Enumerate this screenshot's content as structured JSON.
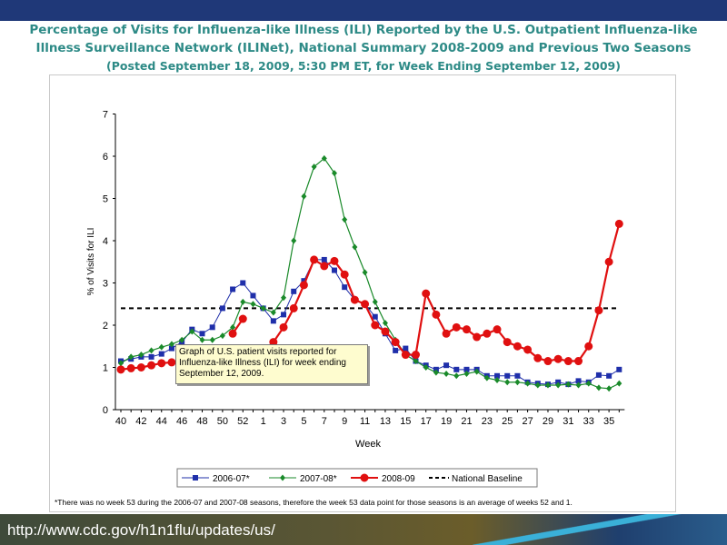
{
  "header": {
    "title_line1": "Percentage of Visits for Influenza-like Illness (ILI) Reported by the U.S. Outpatient Influenza-like",
    "title_line2": "Illness Surveillance Network (ILINet), National Summary 2008-2009 and Previous Two Seasons",
    "title_line3": "(Posted September 18, 2009, 5:30 PM ET, for Week Ending September 12, 2009)"
  },
  "callout": {
    "text": "Graph of U.S. patient visits reported for Influenza-like Illness (ILI) for week ending September 12, 2009."
  },
  "footnote": "*There was no week 53 during the 2006-07 and 2007-08 seasons, therefore the week 53 data point for those seasons is an average of weeks 52 and 1.",
  "url": "http://www.cdc.gov/h1n1flu/updates/us/",
  "colors": {
    "title": "#2d8a86",
    "s2006": "#1f2faa",
    "s2007": "#1a8a2a",
    "s2008": "#e01010",
    "baseline": "#000000"
  },
  "chart_data": {
    "type": "line",
    "title": "",
    "xlabel": "Week",
    "ylabel": "% of Visits for ILI",
    "ylim": [
      0,
      7
    ],
    "yticks": [
      0,
      1,
      2,
      3,
      4,
      5,
      6,
      7
    ],
    "grid": false,
    "legend_position": "bottom",
    "categories": [
      "40",
      "41",
      "42",
      "43",
      "44",
      "45",
      "46",
      "47",
      "48",
      "49",
      "50",
      "51",
      "52",
      "53",
      "1",
      "2",
      "3",
      "4",
      "5",
      "6",
      "7",
      "8",
      "9",
      "10",
      "11",
      "12",
      "13",
      "14",
      "15",
      "16",
      "17",
      "18",
      "19",
      "20",
      "21",
      "22",
      "23",
      "24",
      "25",
      "26",
      "27",
      "28",
      "29",
      "30",
      "31",
      "32",
      "33",
      "34",
      "35",
      "36"
    ],
    "tick_labels": [
      "40",
      "42",
      "44",
      "46",
      "48",
      "50",
      "52",
      "1",
      "3",
      "5",
      "7",
      "9",
      "11",
      "13",
      "15",
      "17",
      "19",
      "21",
      "23",
      "25",
      "27",
      "29",
      "31",
      "33",
      "35"
    ],
    "series": [
      {
        "name": "2006-07*",
        "marker": "square",
        "values": [
          1.15,
          1.2,
          1.25,
          1.25,
          1.32,
          1.45,
          1.6,
          1.9,
          1.8,
          1.95,
          2.4,
          2.85,
          3.0,
          2.7,
          2.4,
          2.1,
          2.25,
          2.8,
          3.05,
          3.55,
          3.55,
          3.3,
          2.9,
          2.6,
          2.5,
          2.2,
          1.8,
          1.4,
          1.45,
          1.15,
          1.05,
          0.95,
          1.05,
          0.95,
          0.95,
          0.95,
          0.8,
          0.8,
          0.8,
          0.8,
          0.65,
          0.62,
          0.6,
          0.65,
          0.6,
          0.68,
          0.65,
          0.82,
          0.8,
          0.95
        ]
      },
      {
        "name": "2007-08*",
        "marker": "diamond",
        "values": [
          1.1,
          1.25,
          1.3,
          1.4,
          1.48,
          1.55,
          1.65,
          1.85,
          1.65,
          1.65,
          1.75,
          1.95,
          2.55,
          2.5,
          2.4,
          2.3,
          2.65,
          4.0,
          5.05,
          5.75,
          5.95,
          5.6,
          4.5,
          3.85,
          3.25,
          2.55,
          2.05,
          1.65,
          1.3,
          1.15,
          1.0,
          0.88,
          0.85,
          0.8,
          0.85,
          0.9,
          0.75,
          0.7,
          0.65,
          0.65,
          0.62,
          0.58,
          0.58,
          0.58,
          0.6,
          0.58,
          0.62,
          0.52,
          0.5,
          0.62
        ]
      },
      {
        "name": "2008-09",
        "marker": "circle",
        "values": [
          0.95,
          0.98,
          1.0,
          1.05,
          1.1,
          1.12,
          null,
          null,
          null,
          null,
          null,
          1.8,
          2.15,
          null,
          null,
          1.6,
          1.95,
          2.4,
          2.95,
          3.55,
          3.4,
          3.52,
          3.2,
          2.6,
          2.5,
          2.0,
          1.85,
          1.6,
          1.3,
          1.3,
          2.75,
          2.25,
          1.8,
          1.95,
          1.9,
          1.72,
          1.8,
          1.9,
          1.6,
          1.5,
          1.42,
          1.22,
          1.15,
          1.2,
          1.15,
          1.15,
          1.5,
          2.35,
          3.5,
          4.4
        ]
      }
    ],
    "baseline": {
      "name": "National Baseline",
      "value": 2.4
    }
  }
}
